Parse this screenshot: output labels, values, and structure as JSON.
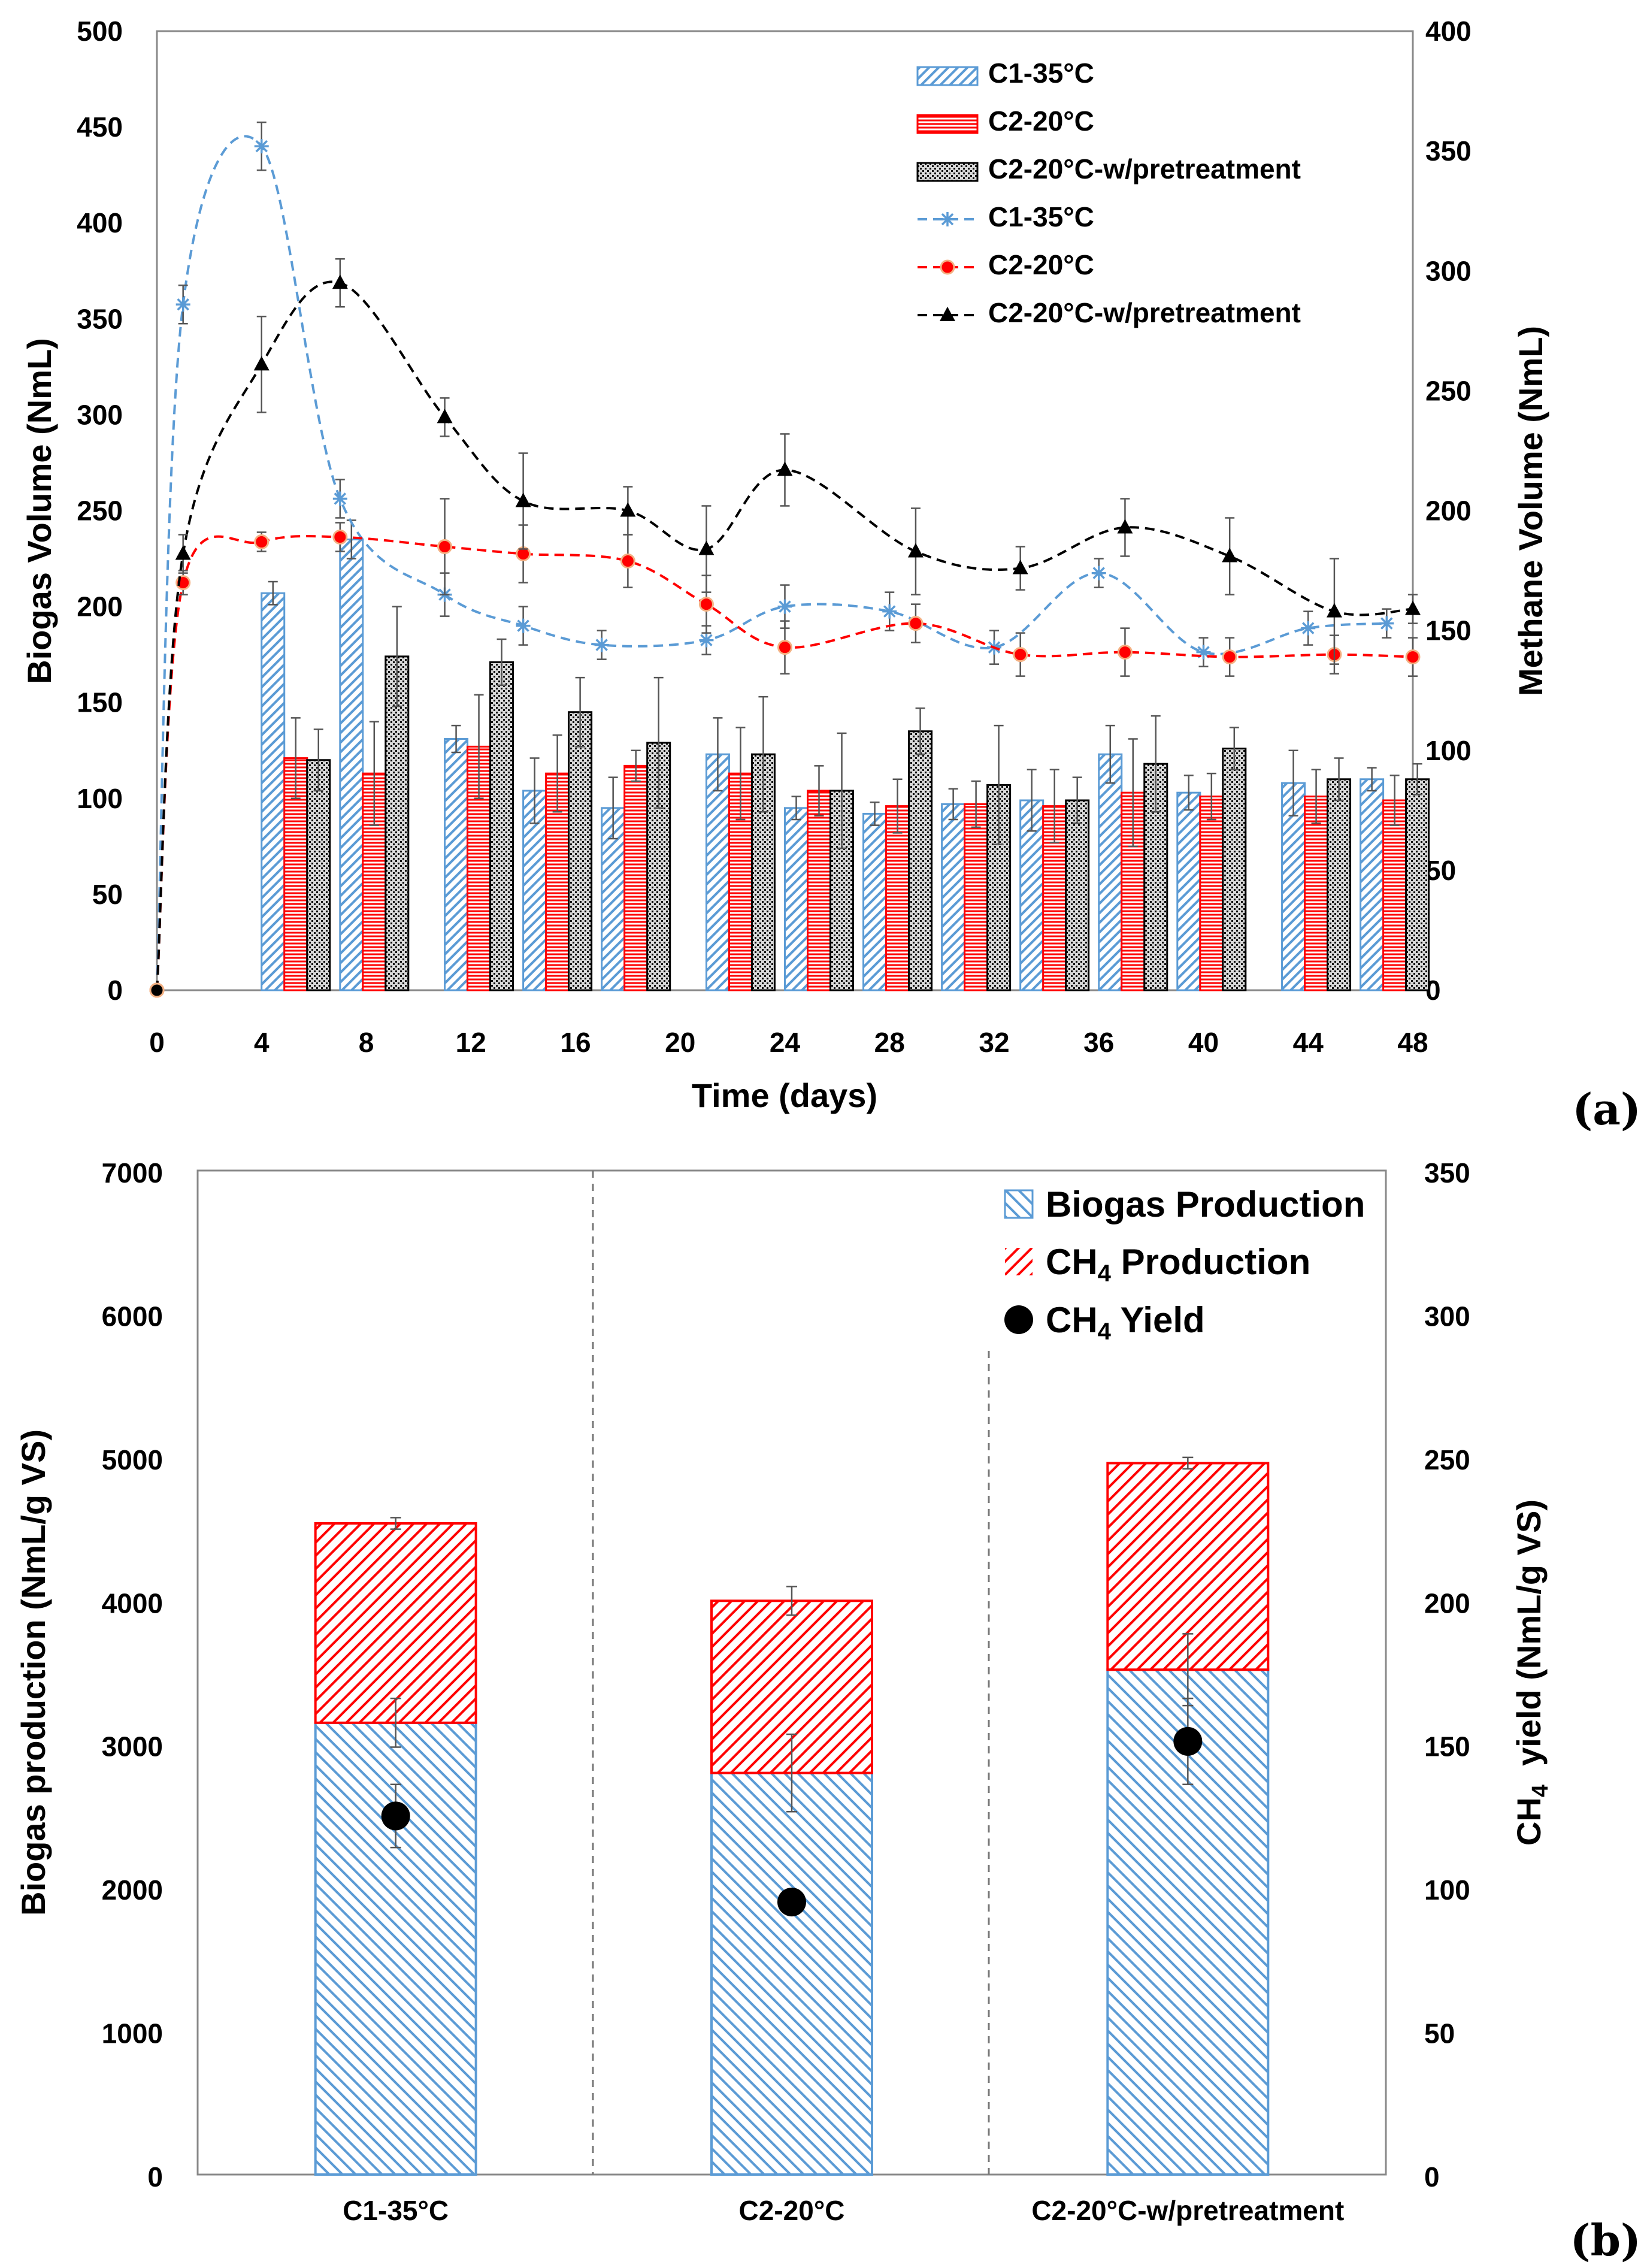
{
  "chart_data": [
    {
      "type": "bar",
      "panel_label": "(a)",
      "x_values": [
        0,
        4,
        8,
        12,
        16,
        20,
        24,
        28,
        32,
        36,
        40,
        44,
        48
      ],
      "xlim": [
        0,
        48
      ],
      "xlabel": "Time (days)",
      "ylabel": "Biogas Volume (NmL)",
      "ylim": [
        0,
        500
      ],
      "y_ticks": [
        0,
        50,
        100,
        150,
        200,
        250,
        300,
        350,
        400,
        450,
        500
      ],
      "y2label": "Methane Volume (NmL)",
      "y2lim": [
        0,
        400
      ],
      "y2_ticks": [
        0,
        50,
        100,
        150,
        200,
        250,
        300,
        350,
        400
      ],
      "grid": false,
      "legend_position": "top-right",
      "bar_series": [
        {
          "name": "C1-35°C",
          "color": "#5b9bd5",
          "pattern": "diagonal-hatch",
          "points": [
            [
              0,
              0
            ],
            [
              4,
              207
            ],
            [
              7,
              235
            ],
            [
              11,
              131
            ],
            [
              14,
              104
            ],
            [
              17,
              95
            ],
            [
              21,
              123
            ],
            [
              24,
              95
            ],
            [
              27,
              92
            ],
            [
              30,
              97
            ],
            [
              33,
              99
            ],
            [
              36,
              123
            ],
            [
              39,
              103
            ],
            [
              43,
              108
            ],
            [
              46,
              110
            ]
          ],
          "error": [
            0,
            6,
            10,
            7,
            17,
            16,
            19,
            6,
            6,
            8,
            16,
            15,
            9,
            17,
            6
          ]
        },
        {
          "name": "C2-20°C",
          "color": "#ff0000",
          "pattern": "horizontal-lines",
          "points": [
            [
              0,
              0
            ],
            [
              4,
              121
            ],
            [
              7,
              113
            ],
            [
              11,
              127
            ],
            [
              14,
              113
            ],
            [
              17,
              117
            ],
            [
              21,
              113
            ],
            [
              24,
              104
            ],
            [
              27,
              96
            ],
            [
              30,
              97
            ],
            [
              33,
              96
            ],
            [
              36,
              103
            ],
            [
              39,
              101
            ],
            [
              43,
              101
            ],
            [
              46,
              99
            ]
          ],
          "error": [
            0,
            21,
            27,
            27,
            20,
            8,
            24,
            13,
            14,
            12,
            19,
            28,
            12,
            14,
            13
          ]
        },
        {
          "name": "C2-20°C-w/pretreatment",
          "color": "#000000",
          "pattern": "stipple",
          "points": [
            [
              0,
              0
            ],
            [
              4,
              120
            ],
            [
              7,
              174
            ],
            [
              11,
              171
            ],
            [
              14,
              145
            ],
            [
              17,
              129
            ],
            [
              21,
              123
            ],
            [
              24,
              104
            ],
            [
              27,
              135
            ],
            [
              30,
              107
            ],
            [
              33,
              99
            ],
            [
              36,
              118
            ],
            [
              39,
              126
            ],
            [
              43,
              110
            ],
            [
              46,
              110
            ]
          ],
          "error": [
            0,
            16,
            26,
            12,
            18,
            34,
            30,
            30,
            12,
            31,
            12,
            25,
            11,
            11,
            8
          ]
        }
      ],
      "line_series": [
        {
          "name": "C1-35°C",
          "axis": "right",
          "color": "#5b9bd5",
          "marker": "asterisk",
          "points": [
            [
              0,
              0
            ],
            [
              1,
              286
            ],
            [
              4,
              352
            ],
            [
              7,
              205
            ],
            [
              11,
              165
            ],
            [
              14,
              152
            ],
            [
              17,
              144
            ],
            [
              21,
              146
            ],
            [
              24,
              160
            ],
            [
              28,
              158
            ],
            [
              32,
              143
            ],
            [
              36,
              174
            ],
            [
              40,
              141
            ],
            [
              44,
              151
            ],
            [
              47,
              153
            ]
          ],
          "error": [
            0,
            8,
            10,
            8,
            9,
            8,
            6,
            6,
            9,
            8,
            7,
            6,
            6,
            7,
            6
          ]
        },
        {
          "name": "C2-20°C",
          "axis": "right",
          "color": "#ff0000",
          "marker": "circle",
          "points": [
            [
              0,
              0
            ],
            [
              1,
              170
            ],
            [
              4,
              187
            ],
            [
              7,
              189
            ],
            [
              11,
              185
            ],
            [
              14,
              182
            ],
            [
              18,
              179
            ],
            [
              21,
              161
            ],
            [
              24,
              143
            ],
            [
              29,
              153
            ],
            [
              33,
              140
            ],
            [
              37,
              141
            ],
            [
              41,
              139
            ],
            [
              45,
              140
            ],
            [
              48,
              139
            ]
          ],
          "error": [
            0,
            5,
            4,
            6,
            20,
            12,
            11,
            12,
            11,
            8,
            9,
            10,
            8,
            8,
            8
          ]
        },
        {
          "name": "C2-20°C-w/pretreatment",
          "axis": "right",
          "color": "#000000",
          "marker": "triangle",
          "points": [
            [
              0,
              0
            ],
            [
              1,
              182
            ],
            [
              4,
              261
            ],
            [
              7,
              295
            ],
            [
              11,
              239
            ],
            [
              14,
              204
            ],
            [
              18,
              200
            ],
            [
              21,
              184
            ],
            [
              24,
              217
            ],
            [
              29,
              183
            ],
            [
              33,
              176
            ],
            [
              37,
              193
            ],
            [
              41,
              181
            ],
            [
              45,
              158
            ],
            [
              48,
              159
            ]
          ],
          "error": [
            0,
            8,
            20,
            10,
            8,
            20,
            10,
            18,
            15,
            18,
            9,
            12,
            16,
            22,
            6
          ]
        }
      ]
    },
    {
      "type": "bar",
      "panel_label": "(b)",
      "categories": [
        "C1-35°C",
        "C2-20°C",
        "C2-20°C-w/pretreatment"
      ],
      "ylabel": "Biogas production (NmL/g VS)",
      "ylim": [
        0,
        7000
      ],
      "y_ticks": [
        0,
        1000,
        2000,
        3000,
        4000,
        5000,
        6000,
        7000
      ],
      "y2label_prefix": "CH",
      "y2label_sub": "4",
      "y2label_suffix": "  yield (NmL/g VS)",
      "y2lim": [
        0,
        350
      ],
      "y2_ticks": [
        0,
        50,
        100,
        150,
        200,
        250,
        300,
        350
      ],
      "grid": false,
      "legend_position": "top-right",
      "stacked": true,
      "series": [
        {
          "name": "Biogas Production",
          "color": "#5b9bd5",
          "pattern": "diagonal-hatch",
          "values": [
            3150,
            2800,
            3520
          ],
          "error": [
            170,
            270,
            250
          ]
        },
        {
          "name": "CH4 Production",
          "legend_prefix": "CH",
          "legend_sub": "4",
          "legend_suffix": " Production",
          "color": "#ff0000",
          "pattern": "diagonal-hatch",
          "values": [
            1390,
            1200,
            1440
          ],
          "error": [
            40,
            100,
            40
          ]
        }
      ],
      "scatter_series": {
        "name": "CH4 Yield",
        "legend_prefix": "CH",
        "legend_sub": "4",
        "legend_suffix": " Yield",
        "axis": "right",
        "color": "#000000",
        "marker": "circle",
        "values": [
          125,
          95,
          151
        ],
        "error": [
          11,
          0,
          15
        ]
      }
    }
  ]
}
